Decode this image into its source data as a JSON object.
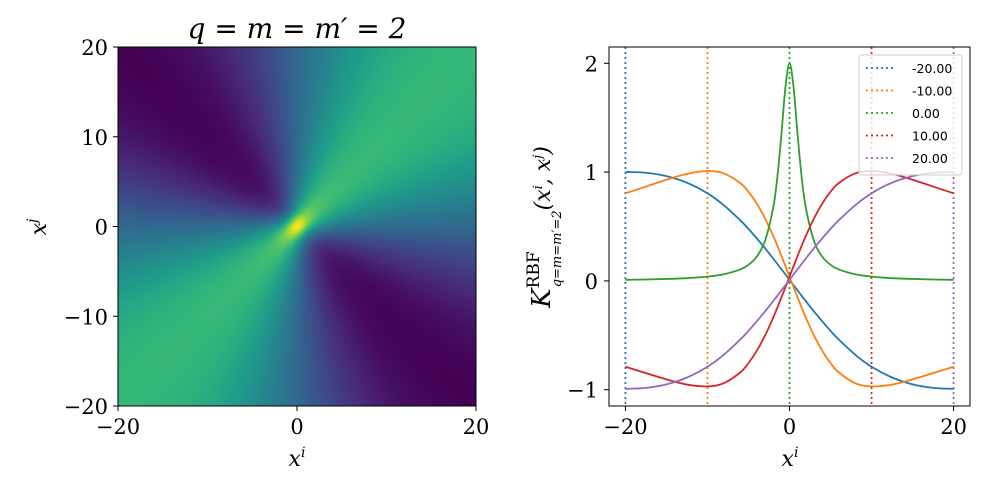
{
  "chart_data": [
    {
      "type": "heatmap",
      "title": "q = m = m′ = 2",
      "xlabel": "x",
      "xlabel_sup": "i",
      "ylabel": "x",
      "ylabel_sup": "j",
      "xlim": [
        -20,
        20
      ],
      "ylim": [
        -20,
        20
      ],
      "xticks": [
        "−20",
        "0",
        "20"
      ],
      "yticks": [
        "−20",
        "−10",
        "0",
        "10",
        "20"
      ],
      "colormap": "viridis",
      "value_range": [
        -1,
        2
      ],
      "kernel_constant": 2
    },
    {
      "type": "line",
      "ylabel": "K",
      "ylabel_sup": "RBF",
      "ylabel_sub": "q=m=m′=2",
      "ylabel_args": "(x",
      "ylabel_args_sup1": "i",
      "ylabel_args_mid": ", x",
      "ylabel_args_sup2": "j",
      "ylabel_args_end": ")",
      "xlabel": "x",
      "xlabel_sup": "i",
      "xlim": [
        -22,
        22
      ],
      "ylim": [
        -1.15,
        2.15
      ],
      "xticks": [
        "−20",
        "0",
        "20"
      ],
      "yticks": [
        "−1",
        "0",
        "1",
        "2"
      ],
      "legend_position": "top-right",
      "x": [
        -20,
        -17.5,
        -15,
        -12.5,
        -10,
        -8,
        -6,
        -5,
        -4,
        -3,
        -2,
        -1.5,
        -1,
        -0.5,
        0,
        0.5,
        1,
        1.5,
        2,
        3,
        4,
        5,
        6,
        8,
        10,
        12.5,
        15,
        17.5,
        20
      ],
      "series": [
        {
          "name": "-20.00",
          "anchor": -20,
          "color": "#1f77b4",
          "values": [
            1.002,
            0.994,
            0.963,
            0.903,
            0.805,
            0.695,
            0.557,
            0.478,
            0.392,
            0.302,
            0.207,
            0.158,
            0.109,
            0.06,
            0.01,
            -0.04,
            -0.089,
            -0.139,
            -0.187,
            -0.282,
            -0.373,
            -0.459,
            -0.539,
            -0.678,
            -0.789,
            -0.888,
            -0.951,
            -0.983,
            -0.993
          ]
        },
        {
          "name": "-10.00",
          "anchor": -10,
          "color": "#ff7f0e",
          "values": [
            0.805,
            0.867,
            0.93,
            0.984,
            1.01,
            0.988,
            0.899,
            0.819,
            0.712,
            0.577,
            0.415,
            0.326,
            0.233,
            0.137,
            0.039,
            -0.059,
            -0.155,
            -0.249,
            -0.34,
            -0.505,
            -0.644,
            -0.756,
            -0.841,
            -0.94,
            -0.97,
            -0.953,
            -0.905,
            -0.848,
            -0.789
          ]
        },
        {
          "name": "0.00",
          "anchor": 0,
          "color": "#2ca02c",
          "values": [
            0.01,
            0.013,
            0.018,
            0.025,
            0.039,
            0.061,
            0.105,
            0.148,
            0.222,
            0.364,
            0.667,
            0.941,
            1.333,
            1.778,
            2.0,
            1.778,
            1.333,
            0.941,
            0.667,
            0.364,
            0.222,
            0.148,
            0.105,
            0.061,
            0.039,
            0.025,
            0.018,
            0.013,
            0.01
          ]
        },
        {
          "name": "10.00",
          "anchor": 10,
          "color": "#d62728",
          "values": [
            -0.789,
            -0.848,
            -0.905,
            -0.953,
            -0.97,
            -0.94,
            -0.841,
            -0.756,
            -0.644,
            -0.505,
            -0.34,
            -0.249,
            -0.155,
            -0.059,
            0.039,
            0.137,
            0.233,
            0.326,
            0.415,
            0.577,
            0.712,
            0.819,
            0.899,
            0.988,
            1.01,
            0.984,
            0.93,
            0.867,
            0.805
          ]
        },
        {
          "name": "20.00",
          "anchor": 20,
          "color": "#9467bd",
          "values": [
            -0.993,
            -0.983,
            -0.951,
            -0.888,
            -0.789,
            -0.678,
            -0.539,
            -0.459,
            -0.373,
            -0.282,
            -0.187,
            -0.139,
            -0.089,
            -0.04,
            0.01,
            0.06,
            0.109,
            0.158,
            0.207,
            0.302,
            0.392,
            0.478,
            0.557,
            0.695,
            0.805,
            0.903,
            0.963,
            0.994,
            1.002
          ]
        }
      ]
    }
  ]
}
